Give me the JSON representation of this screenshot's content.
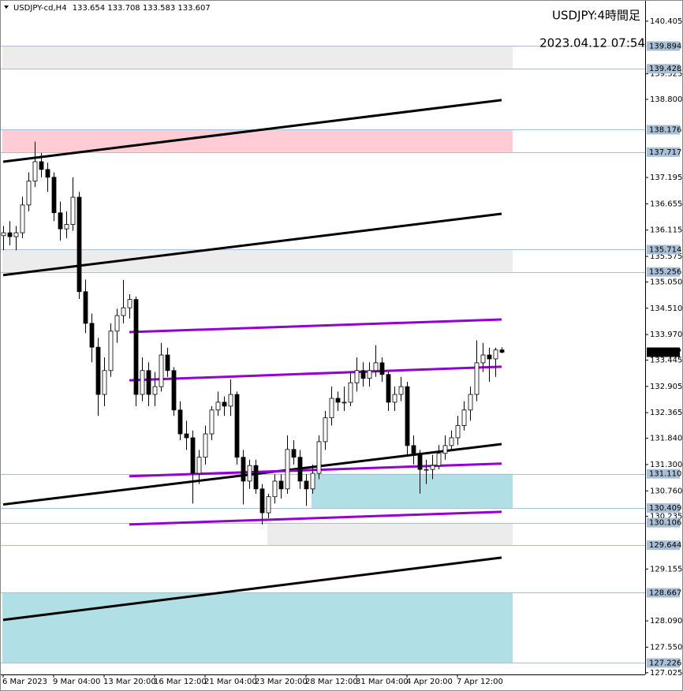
{
  "chart_data": {
    "type": "candlestick",
    "symbol": "USDJPY-cd,H4",
    "title": "USDJPY:4時間足",
    "subtitle": "2023.04.12 07:54",
    "categories": [
      "6 Mar 2023",
      null,
      null,
      null,
      null,
      null,
      null,
      null,
      "9 Mar 04:00",
      null,
      null,
      null,
      null,
      null,
      null,
      null,
      "13 Mar 20:00",
      null,
      null,
      null,
      null,
      null,
      null,
      null,
      "16 Mar 12:00",
      null,
      null,
      null,
      null,
      null,
      null,
      null,
      "21 Mar 04:00",
      null,
      null,
      null,
      null,
      null,
      null,
      null,
      "23 Mar 20:00",
      null,
      null,
      null,
      null,
      null,
      null,
      null,
      "28 Mar 12:00",
      null,
      null,
      null,
      null,
      null,
      null,
      null,
      "31 Mar 04:00",
      null,
      null,
      null,
      null,
      null,
      null,
      null,
      "4 Apr 20:00",
      null,
      null,
      null,
      null,
      null,
      null,
      null,
      "7 Apr 12:00",
      null,
      null,
      null,
      null,
      null,
      null,
      null
    ],
    "open": [
      136.0,
      136.06,
      135.98,
      136.06,
      136.63,
      137.12,
      137.52,
      137.36,
      137.2,
      136.47,
      136.14,
      136.23,
      136.79,
      134.85,
      134.2,
      133.71,
      132.74,
      133.23,
      134.04,
      134.36,
      134.52,
      134.69,
      132.74,
      133.23,
      132.74,
      132.9,
      133.55,
      133.23,
      132.42,
      131.93,
      131.85,
      131.12,
      131.45,
      131.93,
      132.42,
      132.58,
      132.5,
      132.74,
      131.45,
      130.96,
      131.28,
      130.8,
      130.31,
      130.64,
      130.96,
      130.8,
      131.61,
      131.45,
      130.96,
      130.8,
      131.12,
      131.77,
      132.26,
      132.66,
      132.58,
      132.58,
      132.98,
      133.23,
      133.07,
      133.23,
      133.39,
      133.15,
      132.58,
      132.74,
      132.9,
      131.69,
      131.53,
      131.2,
      131.2,
      131.28,
      131.53,
      131.69,
      131.85,
      132.1,
      132.42,
      132.74,
      133.39,
      133.55,
      133.47,
      133.654
    ],
    "high": [
      136.2,
      136.3,
      136.2,
      136.8,
      137.3,
      137.93,
      137.7,
      137.5,
      137.3,
      136.7,
      136.5,
      137.2,
      136.9,
      135.1,
      134.4,
      133.9,
      133.5,
      134.2,
      134.5,
      135.09,
      134.8,
      134.75,
      133.5,
      133.4,
      133.2,
      133.8,
      133.7,
      133.3,
      132.6,
      132.2,
      132.0,
      131.6,
      132.1,
      132.5,
      132.8,
      132.7,
      133.05,
      132.8,
      131.6,
      131.4,
      131.4,
      130.9,
      130.7,
      131.1,
      131.1,
      131.9,
      131.8,
      131.6,
      131.1,
      131.3,
      131.9,
      132.4,
      132.9,
      132.8,
      132.9,
      133.2,
      133.5,
      133.4,
      133.4,
      133.75,
      133.5,
      133.2,
      132.9,
      133.1,
      133.0,
      131.9,
      131.6,
      131.4,
      131.5,
      131.7,
      131.9,
      132.0,
      132.3,
      132.6,
      132.9,
      133.85,
      133.8,
      133.7,
      133.7,
      133.708
    ],
    "low": [
      135.7,
      135.8,
      135.7,
      135.95,
      136.5,
      137.0,
      137.2,
      136.9,
      136.3,
      135.9,
      135.95,
      136.1,
      134.7,
      134.0,
      133.4,
      132.3,
      132.5,
      133.1,
      133.8,
      134.2,
      134.3,
      132.5,
      132.6,
      132.5,
      132.5,
      132.8,
      133.1,
      132.3,
      131.8,
      131.6,
      130.5,
      130.9,
      131.3,
      131.8,
      132.3,
      132.3,
      132.3,
      131.3,
      130.48,
      130.8,
      130.7,
      130.07,
      130.2,
      130.5,
      130.6,
      130.7,
      131.3,
      130.8,
      130.45,
      130.7,
      131.0,
      131.6,
      132.1,
      132.4,
      132.4,
      132.5,
      132.8,
      132.9,
      132.9,
      133.1,
      133.0,
      132.4,
      132.4,
      132.6,
      131.5,
      131.3,
      130.7,
      130.9,
      131.0,
      131.2,
      131.4,
      131.6,
      131.7,
      132.0,
      132.2,
      132.6,
      133.2,
      133.0,
      133.1,
      133.583
    ],
    "close": [
      136.06,
      135.98,
      136.06,
      136.63,
      137.12,
      137.52,
      137.36,
      137.2,
      136.47,
      136.14,
      136.23,
      136.79,
      134.85,
      134.2,
      133.71,
      132.74,
      133.23,
      134.04,
      134.36,
      134.52,
      134.69,
      132.74,
      133.23,
      132.74,
      132.9,
      133.55,
      133.23,
      132.42,
      131.93,
      131.85,
      131.12,
      131.45,
      131.93,
      132.42,
      132.58,
      132.5,
      132.74,
      131.45,
      130.96,
      131.28,
      130.8,
      130.31,
      130.64,
      130.96,
      130.8,
      131.61,
      131.45,
      130.96,
      130.8,
      131.12,
      131.77,
      132.26,
      132.66,
      132.58,
      132.58,
      132.98,
      133.23,
      133.07,
      133.23,
      133.39,
      133.15,
      132.58,
      132.74,
      132.9,
      131.69,
      131.53,
      131.2,
      131.2,
      131.28,
      131.53,
      131.69,
      131.85,
      132.1,
      132.42,
      132.74,
      133.39,
      133.55,
      133.47,
      133.654,
      133.607
    ],
    "up_color": "#ffffff",
    "down_color": "#000000",
    "ylim": [
      126.99,
      140.84
    ],
    "yticks": [
      140.405,
      139.325,
      {
        "value": 138.8,
        "label": "138.800"
      },
      137.195,
      136.655,
      136.115,
      135.575,
      {
        "value": 135.05,
        "label": "135.050"
      },
      {
        "value": 134.51,
        "label": "134.510"
      },
      {
        "value": 133.97,
        "label": "133.970"
      },
      133.445,
      132.905,
      132.365,
      {
        "value": 131.84,
        "label": "131.840"
      },
      {
        "value": 131.3,
        "label": "131.300"
      },
      {
        "value": 130.76,
        "label": "130.760"
      },
      130.235,
      129.155,
      {
        "value": 128.09,
        "label": "128.090"
      },
      {
        "value": 127.55,
        "label": "127.550"
      },
      127.025
    ],
    "levels": [
      139.894,
      139.428,
      138.176,
      137.717,
      135.714,
      135.256,
      {
        "value": 131.11,
        "label": "131.110"
      },
      130.409,
      130.106,
      129.644,
      128.667,
      127.226
    ],
    "level_color": "#a9bfd6",
    "zones": [
      {
        "from": 0,
        "top": 139.894,
        "bottom": 139.428,
        "color": "#ececec"
      },
      {
        "from": 0,
        "top": 138.176,
        "bottom": 137.717,
        "color": "#ffccd5"
      },
      {
        "from": 0,
        "top": 135.714,
        "bottom": 135.256,
        "color": "#ececec"
      },
      {
        "from": 49,
        "top": 131.11,
        "bottom": 130.409,
        "color": "#b0dfe5"
      },
      {
        "from": 42,
        "top": 130.106,
        "bottom": 129.644,
        "color": "#ececec"
      },
      {
        "from": 0,
        "top": 128.667,
        "bottom": 127.226,
        "color": "#b0dfe5"
      }
    ],
    "trendlines": [
      {
        "from": 0,
        "to": 79,
        "start": 137.52,
        "end": 138.785,
        "color": "#000000"
      },
      {
        "from": 0,
        "to": 79,
        "start": 135.19,
        "end": 136.45,
        "color": "#000000"
      },
      {
        "from": 0,
        "to": 79,
        "start": 130.48,
        "end": 131.72,
        "color": "#000000"
      },
      {
        "from": 0,
        "to": 79,
        "start": 128.11,
        "end": 129.39,
        "color": "#000000"
      },
      {
        "from": 20,
        "to": 79,
        "start": 134.02,
        "end": 134.28,
        "color": "#9400d3"
      },
      {
        "from": 20,
        "to": 79,
        "start": 133.03,
        "end": 133.31,
        "color": "#9400d3"
      },
      {
        "from": 20,
        "to": 79,
        "start": 131.06,
        "end": 131.32,
        "color": "#9400d3"
      },
      {
        "from": 20,
        "to": 79,
        "start": 130.07,
        "end": 130.33,
        "color": "#9400d3"
      }
    ]
  }
}
